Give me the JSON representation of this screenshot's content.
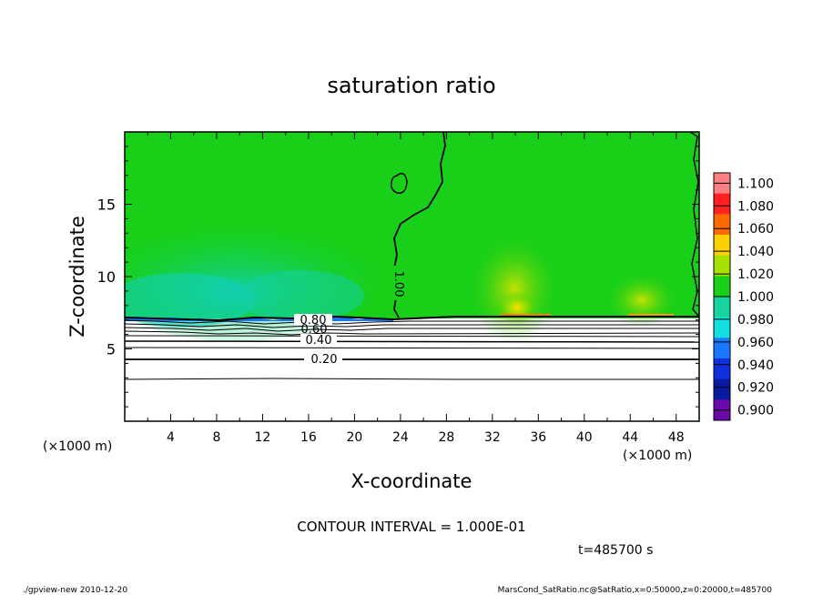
{
  "chart_data": {
    "type": "heatmap",
    "title": "saturation ratio",
    "xlabel": "X-coordinate",
    "ylabel": "Z-coordinate",
    "x_unit_left": "(×1000 m)",
    "x_unit_right": "(×1000 m)",
    "xlim": [
      0,
      50
    ],
    "ylim": [
      0,
      20
    ],
    "x_ticks": [
      "4",
      "8",
      "12",
      "16",
      "20",
      "24",
      "28",
      "32",
      "36",
      "40",
      "44",
      "48"
    ],
    "y_ticks": [
      "5",
      "10",
      "15"
    ],
    "colorbar": {
      "levels": [
        "0.900",
        "0.920",
        "0.940",
        "0.960",
        "0.980",
        "1.000",
        "1.020",
        "1.040",
        "1.060",
        "1.080",
        "1.100"
      ],
      "colors": [
        "#6a0aa8",
        "#0a1aa0",
        "#1030e0",
        "#1a78ff",
        "#10e0e0",
        "#18d2a0",
        "#18d018",
        "#a8e000",
        "#ffd000",
        "#ff6a00",
        "#ff2020",
        "#ff8080"
      ]
    },
    "contour_labels": [
      "0.20",
      "0.40",
      "0.60",
      "0.80",
      "1.00"
    ],
    "contour_interval_text": "CONTOUR INTERVAL = 1.000E-01",
    "time_text": "t=485700 s",
    "footer_left": "./gpview-new  2010-12-20",
    "footer_right": "MarsCond_SatRatio.nc@SatRatio,x=0:50000,z=0:20000,t=485700"
  }
}
